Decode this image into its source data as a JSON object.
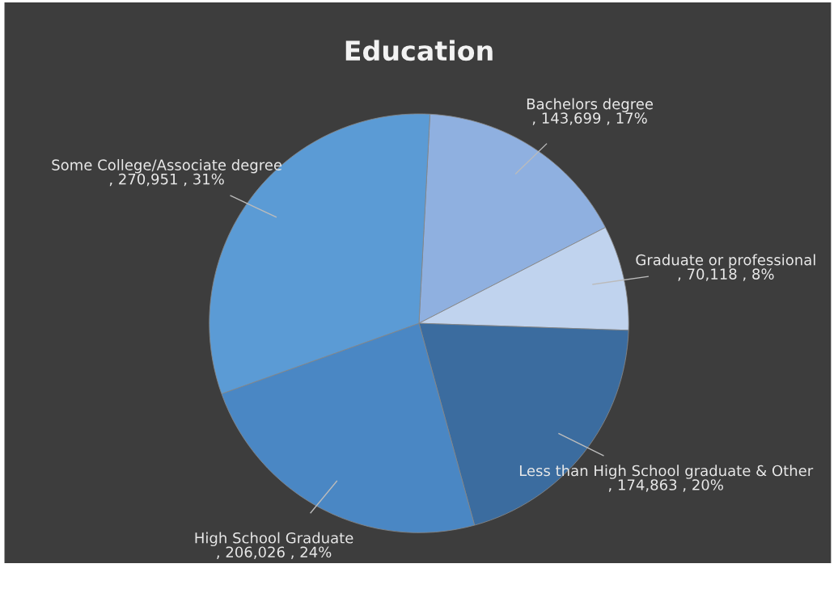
{
  "chart_data": {
    "type": "pie",
    "title": "Education",
    "categories": [
      "Bachelors degree",
      "Graduate or professional",
      "Less than High School graduate & Other",
      "High School Graduate",
      "Some College/Associate degree"
    ],
    "values": [
      143699,
      70118,
      174863,
      206026,
      270951
    ],
    "value_labels": [
      ", 143,699 , 17%",
      ", 70,118 , 8%",
      ", 174,863 , 20%",
      ", 206,026 , 24%",
      ", 270,951 , 31%"
    ],
    "colors": [
      "#8fb0e0",
      "#c0d3ee",
      "#3b6c9f",
      "#4a87c4",
      "#5b9bd5"
    ],
    "legend": false
  }
}
